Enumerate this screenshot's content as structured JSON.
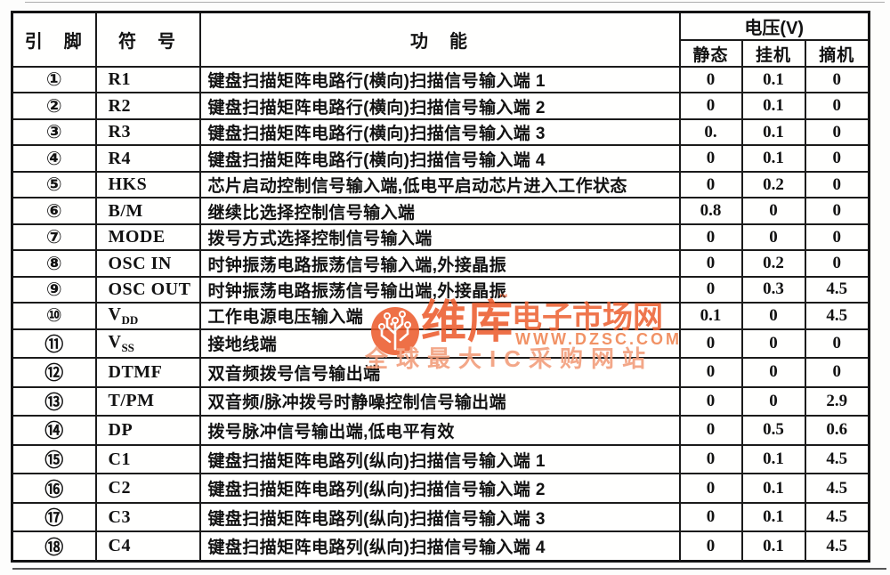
{
  "watermark": {
    "brand": "维库",
    "tm": "™",
    "brand_suffix": "电子市场网",
    "url": "WWW.DZSC.COM",
    "tagline": "全球最大IC采购网站",
    "colors": {
      "primary": "#ec5b2c",
      "suffix": "#ed6233",
      "url": "#f0824f",
      "tagline": "#f29b77"
    }
  },
  "table": {
    "headers": {
      "pin": "引　脚",
      "symbol": "符　号",
      "function": "功　能",
      "voltage_group": "电压(V)",
      "v_static": "静态",
      "v_onhook": "挂机",
      "v_offhook": "摘机"
    },
    "rows": [
      {
        "pin": "①",
        "symbol": "R1",
        "func": "键盘扫描矩阵电路行(横向)扫描信号输入端 1",
        "v_static": "0",
        "v_onhook": "0.1",
        "v_offhook": "0"
      },
      {
        "pin": "②",
        "symbol": "R2",
        "func": "键盘扫描矩阵电路行(横向)扫描信号输入端 2",
        "v_static": "0",
        "v_onhook": "0.1",
        "v_offhook": "0"
      },
      {
        "pin": "③",
        "symbol": "R3",
        "func": "键盘扫描矩阵电路行(横向)扫描信号输入端 3",
        "v_static": "0.",
        "v_onhook": "0.1",
        "v_offhook": "0"
      },
      {
        "pin": "④",
        "symbol": "R4",
        "func": "键盘扫描矩阵电路行(横向)扫描信号输入端 4",
        "v_static": "0",
        "v_onhook": "0.1",
        "v_offhook": "0"
      },
      {
        "pin": "⑤",
        "symbol": "HKS",
        "func": "芯片启动控制信号输入端,低电平启动芯片进入工作状态",
        "v_static": "0",
        "v_onhook": "0.2",
        "v_offhook": "0"
      },
      {
        "pin": "⑥",
        "symbol": "B/M",
        "func": "继续比选择控制信号输入端",
        "v_static": "0.8",
        "v_onhook": "0",
        "v_offhook": "0"
      },
      {
        "pin": "⑦",
        "symbol": "MODE",
        "func": "拨号方式选择控制信号输入端",
        "v_static": "0",
        "v_onhook": "0",
        "v_offhook": "0"
      },
      {
        "pin": "⑧",
        "symbol": "OSC IN",
        "func": "时钟振荡电路振荡信号输入端,外接晶振",
        "v_static": "0",
        "v_onhook": "0.2",
        "v_offhook": "0"
      },
      {
        "pin": "⑨",
        "symbol": "OSC OUT",
        "func": "时钟振荡电路振荡信号输出端,外接晶振",
        "v_static": "0",
        "v_onhook": "0.3",
        "v_offhook": "4.5"
      },
      {
        "pin": "⑩",
        "symbol": "V",
        "symbol_sub": "DD",
        "func": "工作电源电压输入端",
        "v_static": "0.1",
        "v_onhook": "0",
        "v_offhook": "4.5"
      },
      {
        "pin": "⑪",
        "symbol": "V",
        "symbol_sub": "SS",
        "func": "接地线端",
        "v_static": "0",
        "v_onhook": "0",
        "v_offhook": "0"
      },
      {
        "pin": "⑫",
        "symbol": "DTMF",
        "func": "双音频拨号信号输出端",
        "v_static": "0",
        "v_onhook": "0",
        "v_offhook": "0"
      },
      {
        "pin": "⑬",
        "symbol": "T/PM",
        "func": "双音频/脉冲拨号时静噪控制信号输出端",
        "v_static": "0",
        "v_onhook": "0",
        "v_offhook": "2.9"
      },
      {
        "pin": "⑭",
        "symbol": "DP",
        "func": "拨号脉冲信号输出端,低电平有效",
        "v_static": "0",
        "v_onhook": "0.5",
        "v_offhook": "0.6"
      },
      {
        "pin": "⑮",
        "symbol": "C1",
        "func": "键盘扫描矩阵电路列(纵向)扫描信号输入端 1",
        "v_static": "0",
        "v_onhook": "0.1",
        "v_offhook": "4.5"
      },
      {
        "pin": "⑯",
        "symbol": "C2",
        "func": "键盘扫描矩阵电路列(纵向)扫描信号输入端 2",
        "v_static": "0",
        "v_onhook": "0.1",
        "v_offhook": "4.5"
      },
      {
        "pin": "⑰",
        "symbol": "C3",
        "func": "键盘扫描矩阵电路列(纵向)扫描信号输入端 3",
        "v_static": "0",
        "v_onhook": "0.1",
        "v_offhook": "4.5"
      },
      {
        "pin": "⑱",
        "symbol": "C4",
        "func": "键盘扫描矩阵电路列(纵向)扫描信号输入端 4",
        "v_static": "0",
        "v_onhook": "0.1",
        "v_offhook": "4.5"
      }
    ]
  }
}
